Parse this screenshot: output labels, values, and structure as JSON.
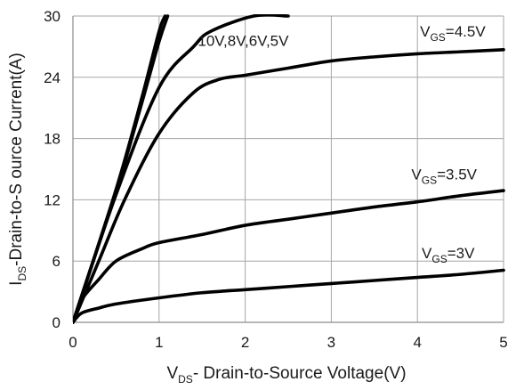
{
  "chart_data": {
    "type": "line",
    "xlabel": {
      "prefix": "V",
      "sub": "DS",
      "rest": "- Drain-to-Source Voltage(V)"
    },
    "ylabel": {
      "prefix": "I",
      "sub": "DS",
      "rest": "-Drain-to-S ource Current(A)"
    },
    "xlim": [
      0,
      5
    ],
    "ylim": [
      0,
      30
    ],
    "x_ticks": [
      "0",
      "1",
      "2",
      "3",
      "4",
      "5"
    ],
    "y_ticks": [
      "0",
      "6",
      "12",
      "18",
      "24",
      "30"
    ],
    "grid": true,
    "series_color": "#000000",
    "grid_color": "#a6a6a6",
    "series": [
      {
        "x": [
          0,
          0.5,
          0.8,
          1.0,
          1.07
        ],
        "y": [
          0,
          13,
          22,
          28.5,
          30
        ]
      },
      {
        "x": [
          0,
          0.5,
          0.8,
          1.0,
          1.1
        ],
        "y": [
          0,
          12.8,
          21.5,
          27.5,
          30
        ]
      },
      {
        "x": [
          0,
          0.5,
          1.0,
          1.4,
          1.6,
          2.1,
          2.5
        ],
        "y": [
          0,
          12.5,
          23,
          27,
          28.5,
          30,
          30
        ]
      },
      {
        "x": [
          0,
          0.3,
          0.6,
          1.0,
          1.4,
          1.7,
          2.0,
          2.5,
          3.0,
          3.5,
          4.0,
          4.5,
          5.0
        ],
        "y": [
          0,
          6,
          12,
          18.5,
          22.5,
          23.8,
          24.2,
          24.9,
          25.6,
          26,
          26.3,
          26.5,
          26.7
        ]
      },
      {
        "x": [
          0,
          0.1,
          0.3,
          0.5,
          0.8,
          1.0,
          1.5,
          2.0,
          2.5,
          3.0,
          3.5,
          4.0,
          4.5,
          5.0
        ],
        "y": [
          0,
          2.2,
          4.2,
          6.0,
          7.2,
          7.8,
          8.6,
          9.5,
          10.1,
          10.7,
          11.3,
          11.8,
          12.4,
          12.9
        ]
      },
      {
        "x": [
          0,
          0.1,
          0.3,
          0.5,
          1.0,
          1.5,
          2.0,
          2.5,
          3.0,
          3.5,
          4.0,
          4.5,
          5.0
        ],
        "y": [
          0,
          0.9,
          1.4,
          1.8,
          2.4,
          2.9,
          3.2,
          3.5,
          3.8,
          4.1,
          4.4,
          4.7,
          5.1
        ]
      }
    ],
    "annotations": [
      {
        "text": "10V,8V,6V,5V",
        "at": [
          1.45,
          27.1
        ]
      },
      {
        "prefix": "V",
        "sub": "GS",
        "rest": "=4.5V",
        "at": [
          4.03,
          28.0
        ]
      },
      {
        "prefix": "V",
        "sub": "GS",
        "rest": "=3.5V",
        "at": [
          3.93,
          14.0
        ]
      },
      {
        "prefix": "V",
        "sub": "GS",
        "rest": "=3V",
        "at": [
          4.05,
          6.3
        ]
      }
    ]
  }
}
